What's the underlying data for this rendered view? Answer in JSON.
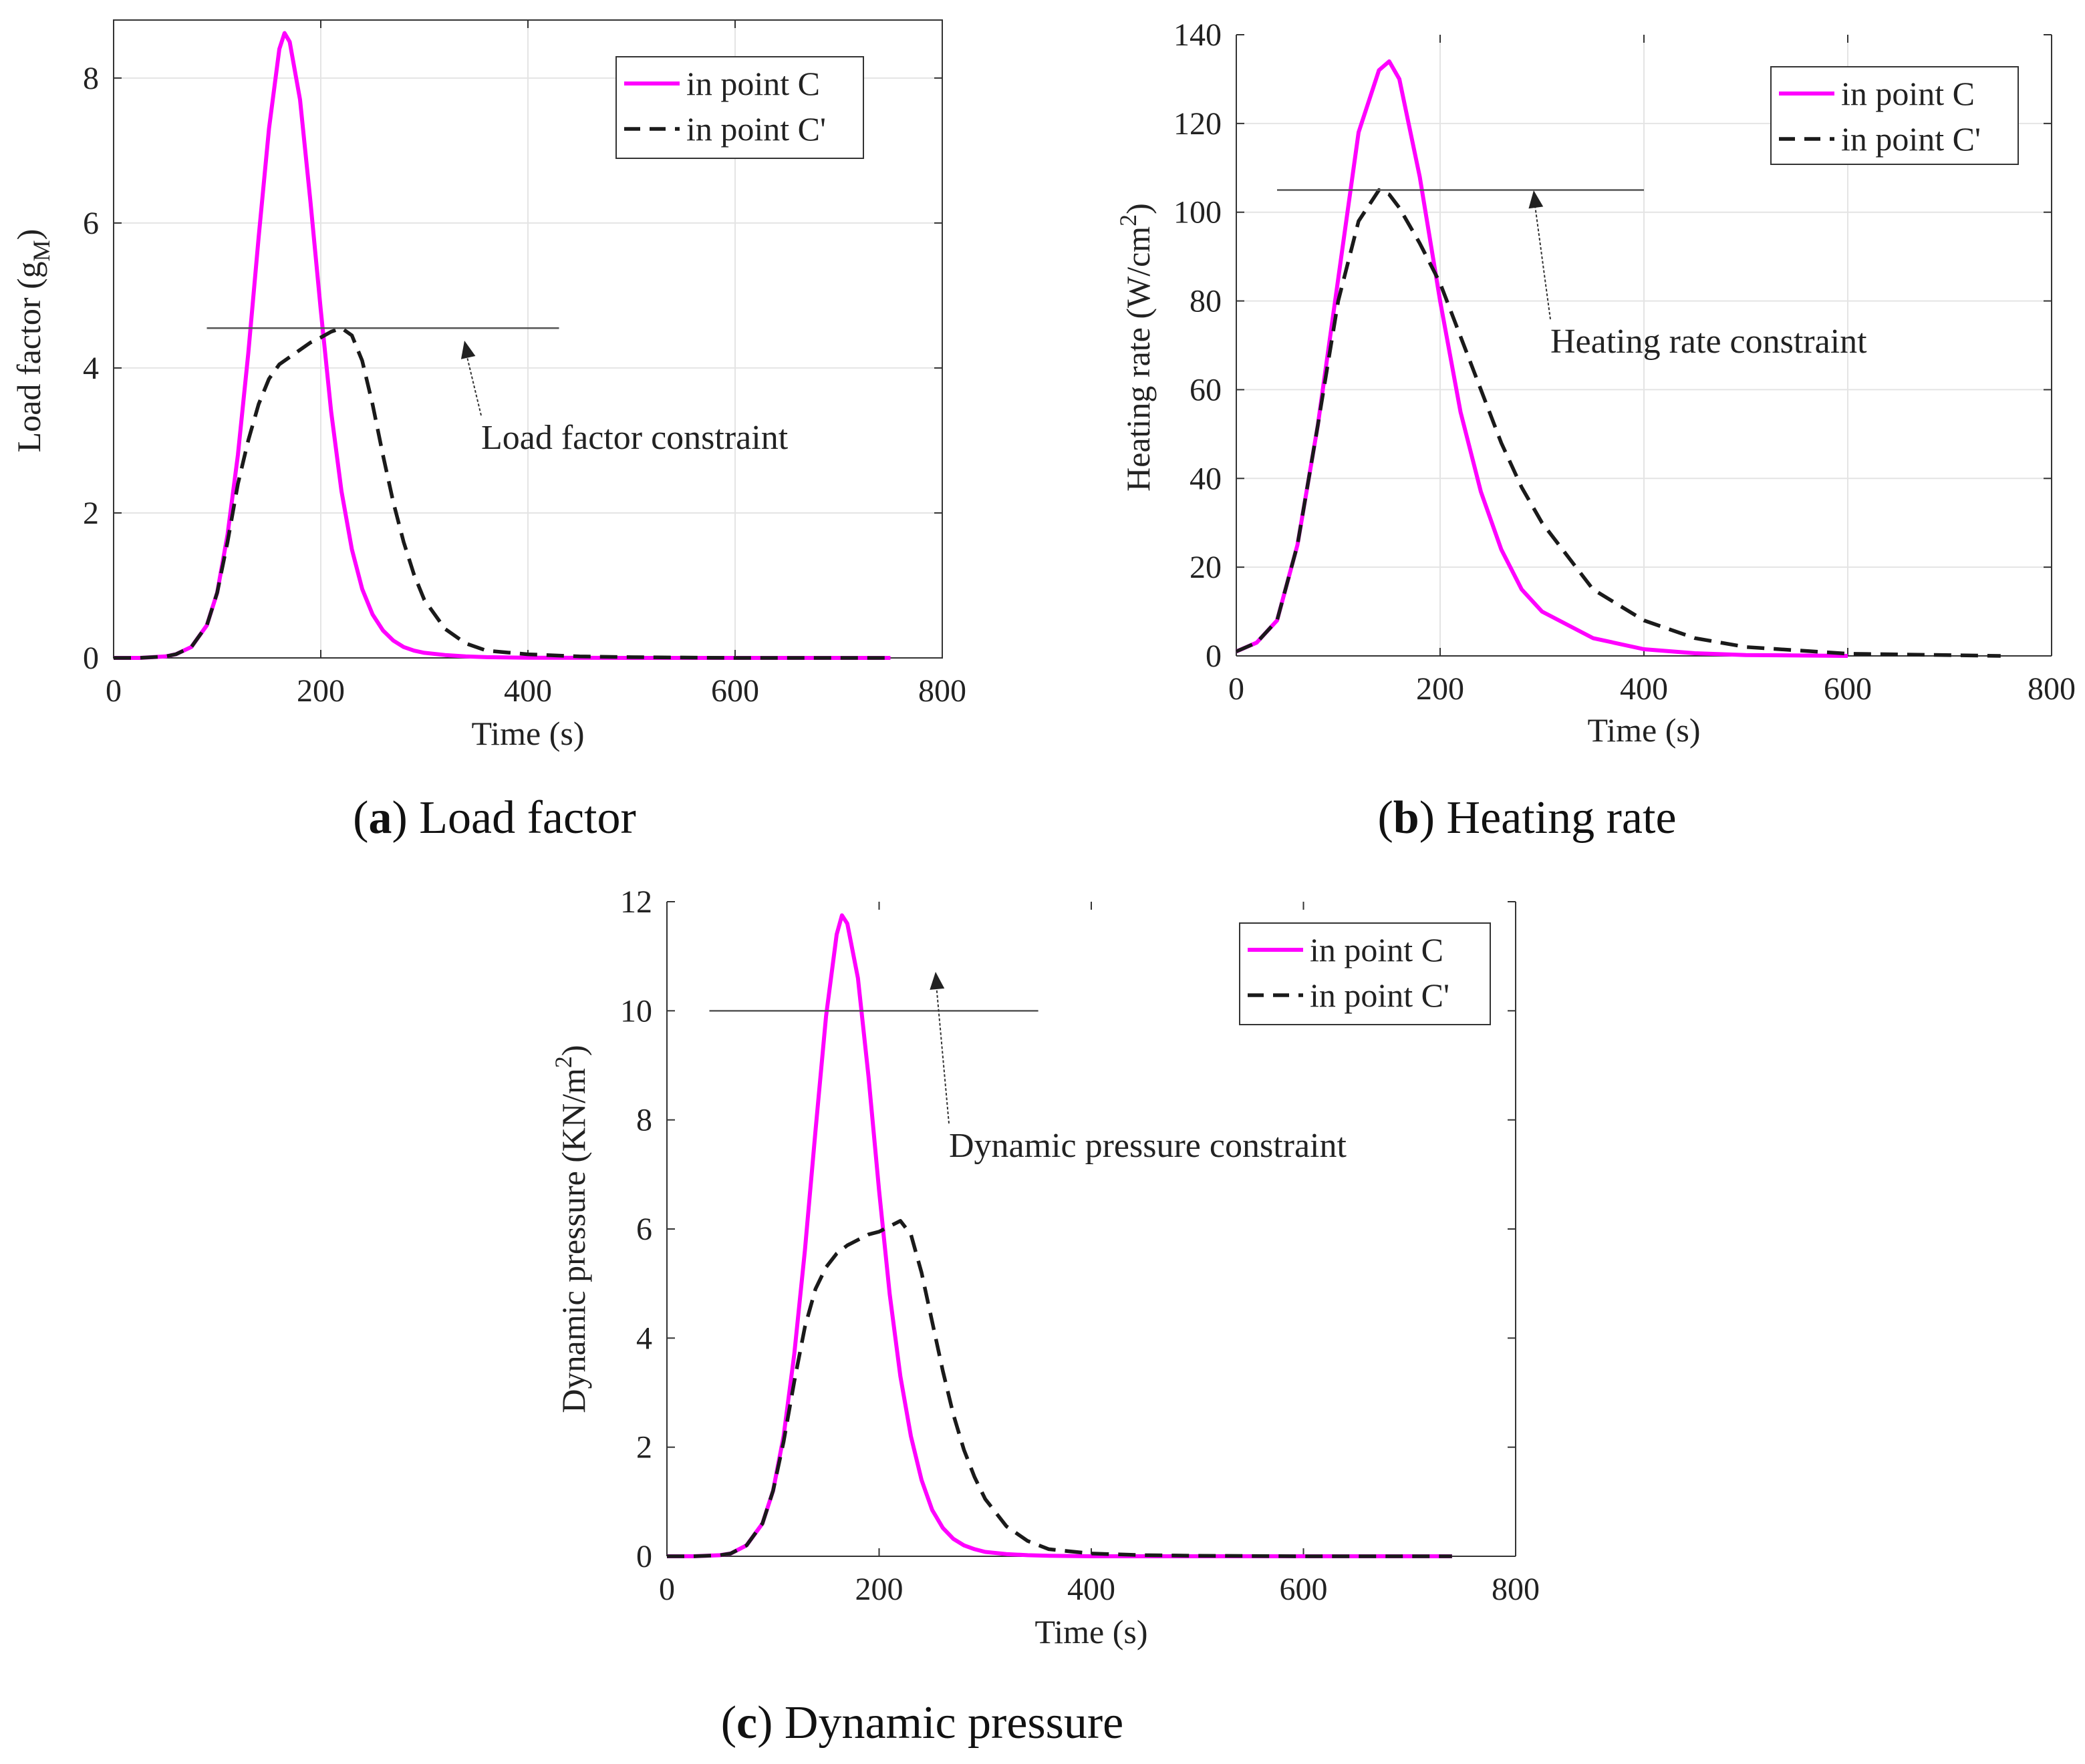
{
  "chart_data": [
    {
      "type": "line",
      "panel_letter": "a",
      "caption": "Load factor",
      "xlabel": "Time (s)",
      "ylabel_main": "Load factor (g",
      "ylabel_sub": "M",
      "ylabel_end": ")",
      "xlim": [
        0,
        800
      ],
      "ylim": [
        0,
        8.8
      ],
      "xticks": [
        "0",
        "200",
        "400",
        "600",
        "800"
      ],
      "yticks": [
        "0",
        "2",
        "4",
        "6",
        "8"
      ],
      "grid": true,
      "legend_position": "top-right",
      "constraint": {
        "value": 4.55,
        "x_start": 90,
        "x_end": 430,
        "label": "Load factor constraint"
      },
      "series": [
        {
          "name": "in point C",
          "color": "#ff00ff",
          "style": "solid",
          "x": [
            0,
            25,
            50,
            60,
            75,
            90,
            100,
            110,
            120,
            130,
            140,
            150,
            160,
            165,
            170,
            180,
            190,
            200,
            210,
            220,
            230,
            240,
            250,
            260,
            270,
            280,
            290,
            300,
            320,
            340,
            360,
            400,
            500,
            600,
            750
          ],
          "y": [
            0,
            0,
            0.02,
            0.05,
            0.15,
            0.45,
            0.9,
            1.7,
            2.8,
            4.2,
            5.8,
            7.3,
            8.4,
            8.62,
            8.5,
            7.7,
            6.3,
            4.8,
            3.4,
            2.3,
            1.5,
            0.95,
            0.6,
            0.38,
            0.24,
            0.15,
            0.1,
            0.07,
            0.04,
            0.02,
            0.01,
            0.003,
            0,
            0,
            0
          ]
        },
        {
          "name": "in point C'",
          "color": "#1a1a1a",
          "style": "dashed",
          "x": [
            0,
            25,
            50,
            60,
            75,
            90,
            100,
            110,
            120,
            130,
            140,
            150,
            160,
            170,
            180,
            190,
            200,
            210,
            220,
            230,
            240,
            250,
            260,
            270,
            280,
            290,
            300,
            320,
            340,
            360,
            400,
            450,
            500,
            600,
            750
          ],
          "y": [
            0,
            0,
            0.02,
            0.05,
            0.15,
            0.45,
            0.9,
            1.6,
            2.4,
            3.0,
            3.5,
            3.85,
            4.05,
            4.15,
            4.25,
            4.35,
            4.42,
            4.5,
            4.55,
            4.45,
            4.1,
            3.5,
            2.8,
            2.15,
            1.6,
            1.15,
            0.8,
            0.4,
            0.2,
            0.1,
            0.05,
            0.02,
            0.01,
            0,
            0
          ]
        }
      ]
    },
    {
      "type": "line",
      "panel_letter": "b",
      "caption": "Heating rate",
      "xlabel": "Time (s)",
      "ylabel_main": "Heating rate (W/cm",
      "ylabel_sup": "2",
      "ylabel_end": ")",
      "xlim": [
        0,
        800
      ],
      "ylim": [
        0,
        140
      ],
      "xticks": [
        "0",
        "200",
        "400",
        "600",
        "800"
      ],
      "yticks": [
        "0",
        "20",
        "40",
        "60",
        "80",
        "100",
        "120",
        "140"
      ],
      "grid": true,
      "legend_position": "top-right",
      "constraint": {
        "value": 105,
        "x_start": 40,
        "x_end": 400,
        "label": "Heating rate constraint"
      },
      "series": [
        {
          "name": "in point C",
          "color": "#ff00ff",
          "style": "solid",
          "x": [
            0,
            20,
            40,
            60,
            80,
            100,
            120,
            140,
            150,
            160,
            180,
            200,
            220,
            240,
            260,
            280,
            300,
            350,
            400,
            450,
            500,
            600
          ],
          "y": [
            1,
            3,
            8,
            25,
            52,
            85,
            118,
            132,
            134,
            130,
            108,
            80,
            55,
            37,
            24,
            15,
            10,
            4,
            1.5,
            0.6,
            0.2,
            0
          ]
        },
        {
          "name": "in point C'",
          "color": "#1a1a1a",
          "style": "dashed",
          "x": [
            0,
            20,
            40,
            60,
            80,
            100,
            120,
            140,
            150,
            160,
            180,
            200,
            220,
            240,
            260,
            280,
            300,
            350,
            400,
            450,
            500,
            600,
            750
          ],
          "y": [
            1,
            3,
            8,
            25,
            52,
            80,
            98,
            105,
            104,
            101,
            93,
            84,
            72,
            60,
            48,
            38,
            30,
            15,
            8,
            4,
            2,
            0.5,
            0
          ]
        }
      ]
    },
    {
      "type": "line",
      "panel_letter": "c",
      "caption": "Dynamic pressure",
      "xlabel": "Time (s)",
      "ylabel_main": "Dynamic pressure (KN/m",
      "ylabel_sup": "2",
      "ylabel_end": ")",
      "xlim": [
        0,
        800
      ],
      "ylim": [
        0,
        12
      ],
      "xticks": [
        "0",
        "200",
        "400",
        "600",
        "800"
      ],
      "yticks": [
        "0",
        "2",
        "4",
        "6",
        "8",
        "10",
        "12"
      ],
      "grid": false,
      "legend_position": "top-right",
      "constraint": {
        "value": 10,
        "x_start": 40,
        "x_end": 350,
        "label": "Dynamic pressure constraint"
      },
      "series": [
        {
          "name": "in point C",
          "color": "#ff00ff",
          "style": "solid",
          "x": [
            0,
            25,
            50,
            60,
            75,
            90,
            100,
            110,
            120,
            130,
            140,
            150,
            160,
            165,
            170,
            180,
            190,
            200,
            210,
            220,
            230,
            240,
            250,
            260,
            270,
            280,
            290,
            300,
            320,
            340,
            360,
            400,
            500,
            600,
            740
          ],
          "y": [
            0,
            0,
            0.02,
            0.05,
            0.2,
            0.6,
            1.2,
            2.2,
            3.7,
            5.6,
            7.8,
            9.9,
            11.4,
            11.75,
            11.6,
            10.6,
            8.8,
            6.7,
            4.8,
            3.3,
            2.2,
            1.4,
            0.85,
            0.52,
            0.32,
            0.2,
            0.13,
            0.08,
            0.04,
            0.02,
            0.01,
            0,
            0,
            0,
            0
          ]
        },
        {
          "name": "in point C'",
          "color": "#1a1a1a",
          "style": "dashed",
          "x": [
            0,
            25,
            50,
            60,
            75,
            90,
            100,
            110,
            120,
            130,
            140,
            150,
            160,
            170,
            180,
            190,
            200,
            210,
            220,
            230,
            240,
            250,
            260,
            270,
            280,
            290,
            300,
            320,
            340,
            360,
            400,
            450,
            500,
            600,
            740
          ],
          "y": [
            0,
            0,
            0.02,
            0.05,
            0.2,
            0.6,
            1.2,
            2.1,
            3.2,
            4.2,
            4.9,
            5.3,
            5.55,
            5.7,
            5.8,
            5.9,
            5.95,
            6.05,
            6.15,
            5.9,
            5.2,
            4.3,
            3.4,
            2.6,
            1.95,
            1.45,
            1.05,
            0.55,
            0.28,
            0.13,
            0.05,
            0.02,
            0.01,
            0,
            0
          ]
        }
      ]
    }
  ]
}
